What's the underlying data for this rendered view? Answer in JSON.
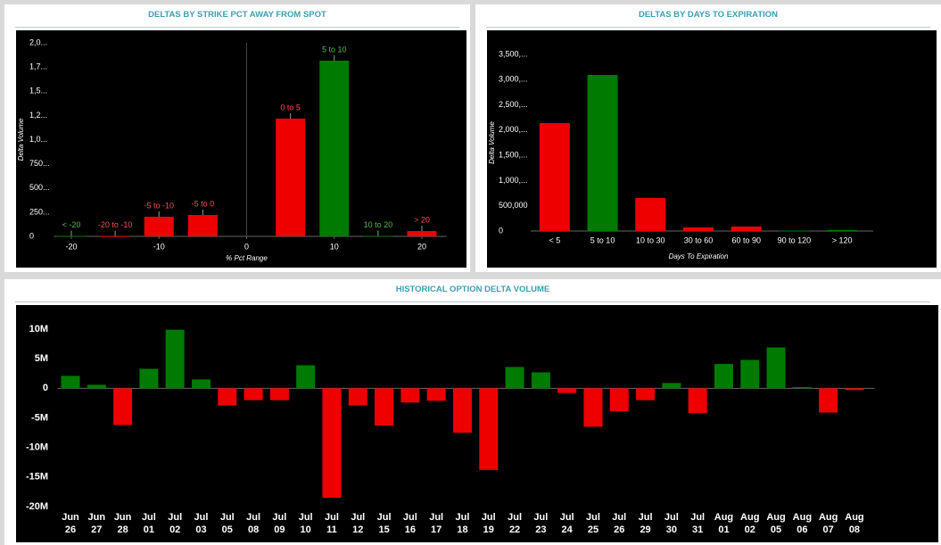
{
  "chart_data": [
    {
      "type": "bar",
      "title": "DELTAS BY STRIKE PCT AWAY FROM SPOT",
      "x_label": "% Pct Range",
      "y_label": "Delta Volume",
      "categories": [
        "< -20",
        "-20 to -10",
        "-5 to -10",
        "-5 to 0",
        "0 to 5",
        "5 to 10",
        "10 to 20",
        "> 20"
      ],
      "x": [
        -20,
        -15,
        -10,
        -5,
        5,
        10,
        15,
        20
      ],
      "values": [
        5000,
        3000,
        203000,
        221000,
        1217000,
        1816000,
        5000,
        55000
      ],
      "colors": [
        "#007a00",
        "#ee0000",
        "#ee0000",
        "#ee0000",
        "#ee0000",
        "#007a00",
        "#007a00",
        "#ee0000"
      ],
      "label_colors": [
        "#55bb55",
        "#ff5050",
        "#ff5050",
        "#ff5050",
        "#ff5050",
        "#55bb55",
        "#55bb55",
        "#ff5050"
      ],
      "xlim": [
        -22,
        22
      ],
      "xticks": [
        -20,
        -10,
        0,
        10,
        20
      ],
      "vline": 0,
      "ylim": [
        0,
        2000000
      ],
      "yticks": [
        0,
        {
          "value": 250000,
          "label": "250..."
        },
        {
          "value": 500000,
          "label": "500..."
        },
        {
          "value": 750000,
          "label": "750..."
        },
        {
          "value": 1000000,
          "label": "1,0..."
        },
        {
          "value": 1250000,
          "label": "1,2..."
        },
        {
          "value": 1500000,
          "label": "1,5..."
        },
        {
          "value": 1750000,
          "label": "1,7..."
        },
        {
          "value": 2000000,
          "label": "2,0..."
        }
      ]
    },
    {
      "type": "bar",
      "title": "DELTAS BY DAYS TO EXPIRATION",
      "x_label": "Days To Expiration",
      "y_label": "Delta Volume",
      "categories": [
        "< 5",
        "5 to 10",
        "10 to 30",
        "30 to 60",
        "60 to 90",
        "90 to 120",
        "> 120"
      ],
      "values": [
        2139000,
        3093000,
        654000,
        71000,
        88000,
        10000,
        20000
      ],
      "colors": [
        "#ee0000",
        "#007a00",
        "#ee0000",
        "#ee0000",
        "#ee0000",
        "#007a00",
        "#007a00"
      ],
      "ylim": [
        0,
        3500000
      ],
      "yticks": [
        0,
        {
          "value": 500000,
          "label": "500,000"
        },
        {
          "value": 1000000,
          "label": "1,000,..."
        },
        {
          "value": 1500000,
          "label": "1,500,..."
        },
        {
          "value": 2000000,
          "label": "2,000,..."
        },
        {
          "value": 2500000,
          "label": "2,500,..."
        },
        {
          "value": 3000000,
          "label": "3,000,..."
        },
        {
          "value": 3500000,
          "label": "3,500,..."
        }
      ]
    },
    {
      "type": "signbar",
      "title": "HISTORICAL OPTION DELTA VOLUME",
      "categories": [
        [
          "Jun",
          "26"
        ],
        [
          "Jun",
          "27"
        ],
        [
          "Jun",
          "28"
        ],
        [
          "Jul",
          "01"
        ],
        [
          "Jul",
          "02"
        ],
        [
          "Jul",
          "03"
        ],
        [
          "Jul",
          "05"
        ],
        [
          "Jul",
          "08"
        ],
        [
          "Jul",
          "09"
        ],
        [
          "Jul",
          "10"
        ],
        [
          "Jul",
          "11"
        ],
        [
          "Jul",
          "12"
        ],
        [
          "Jul",
          "15"
        ],
        [
          "Jul",
          "16"
        ],
        [
          "Jul",
          "17"
        ],
        [
          "Jul",
          "18"
        ],
        [
          "Jul",
          "19"
        ],
        [
          "Jul",
          "22"
        ],
        [
          "Jul",
          "23"
        ],
        [
          "Jul",
          "24"
        ],
        [
          "Jul",
          "25"
        ],
        [
          "Jul",
          "26"
        ],
        [
          "Jul",
          "29"
        ],
        [
          "Jul",
          "30"
        ],
        [
          "Jul",
          "31"
        ],
        [
          "Aug",
          "01"
        ],
        [
          "Aug",
          "02"
        ],
        [
          "Aug",
          "05"
        ],
        [
          "Aug",
          "06"
        ],
        [
          "Aug",
          "07"
        ],
        [
          "Aug",
          "08"
        ]
      ],
      "values": [
        2100000,
        600000,
        -6200000,
        3300000,
        9900000,
        1500000,
        -2900000,
        -2000000,
        -2000000,
        3900000,
        -18500000,
        -2900000,
        -6300000,
        -2400000,
        -2100000,
        -7500000,
        -13800000,
        3600000,
        2700000,
        -800000,
        -6500000,
        -3900000,
        -2000000,
        900000,
        -4200000,
        4100000,
        4800000,
        6900000,
        200000,
        -4100000,
        -300000
      ],
      "colors": {
        "positive": "#007a00",
        "negative": "#ee0000"
      },
      "ylim": [
        -20000000,
        10000000
      ],
      "yticks": [
        {
          "value": -20000000,
          "label": "-20M"
        },
        {
          "value": -15000000,
          "label": "-15M"
        },
        {
          "value": -10000000,
          "label": "-10M"
        },
        {
          "value": -5000000,
          "label": "-5M"
        },
        0,
        {
          "value": 5000000,
          "label": "5M"
        },
        {
          "value": 10000000,
          "label": "10M"
        }
      ]
    }
  ]
}
